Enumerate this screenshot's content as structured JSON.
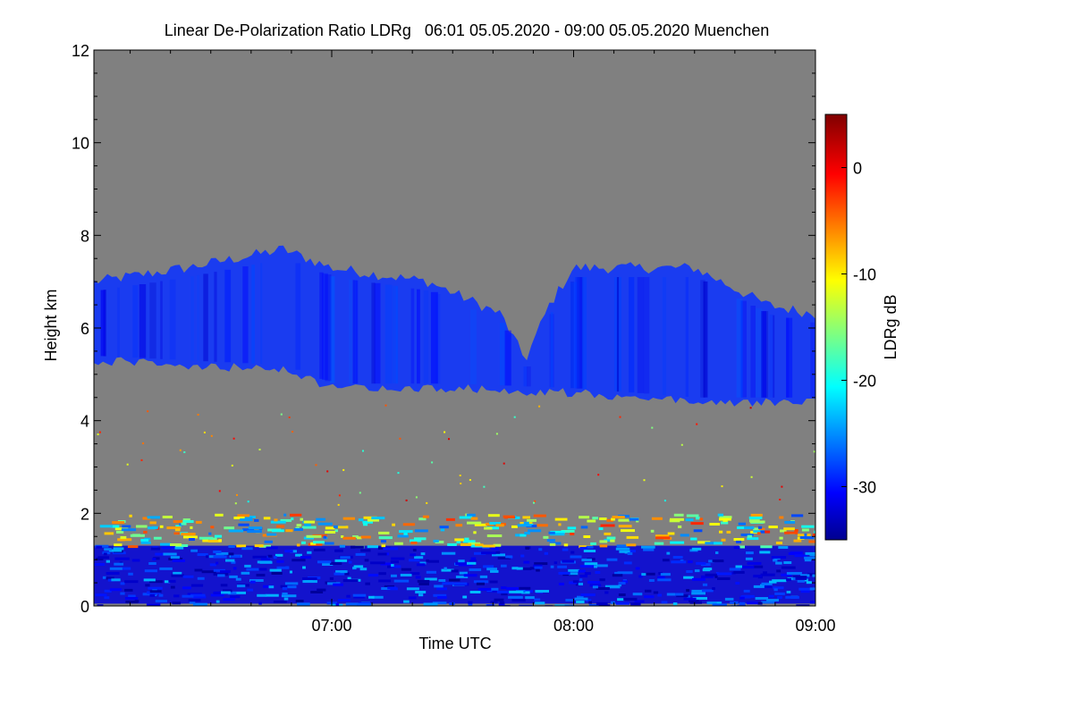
{
  "chart_data": {
    "type": "heatmap",
    "title": "Linear De-Polarization Ratio LDRg   06:01 05.05.2020 - 09:00 05.05.2020 Muenchen",
    "xlabel": "Time UTC",
    "ylabel": "Height km",
    "colorbar_label": "LDRg dB",
    "x_range": [
      "06:01",
      "09:00"
    ],
    "xlim": [
      6.0167,
      9.0
    ],
    "x_ticks": [
      {
        "label": "07:00",
        "value": 7.0
      },
      {
        "label": "08:00",
        "value": 8.0
      },
      {
        "label": "09:00",
        "value": 9.0
      }
    ],
    "ylim": [
      0,
      12
    ],
    "y_ticks": [
      {
        "label": "0",
        "value": 0
      },
      {
        "label": "2",
        "value": 2
      },
      {
        "label": "4",
        "value": 4
      },
      {
        "label": "6",
        "value": 6
      },
      {
        "label": "8",
        "value": 8
      },
      {
        "label": "10",
        "value": 10
      },
      {
        "label": "12",
        "value": 12
      }
    ],
    "colorbar_range": [
      -35,
      5
    ],
    "colorbar_ticks": [
      {
        "label": "0",
        "value": 0
      },
      {
        "label": "-10",
        "value": -10
      },
      {
        "label": "-20",
        "value": -20
      },
      {
        "label": "-30",
        "value": -30
      }
    ],
    "colormap": "jet",
    "background_color": "#808080",
    "colors": {
      "no_signal": "#808080",
      "cloud_core": "#1a3cf0",
      "low_extreme": "#0c0c96",
      "high_extreme": "#8b0000"
    },
    "features": {
      "cloud_layer": {
        "description_value_db": -30,
        "top_km": [
          [
            6.02,
            7.0
          ],
          [
            6.4,
            7.3
          ],
          [
            6.8,
            7.7
          ],
          [
            7.0,
            7.3
          ],
          [
            7.4,
            7.0
          ],
          [
            7.7,
            6.3
          ],
          [
            7.8,
            5.3
          ],
          [
            7.9,
            6.5
          ],
          [
            8.0,
            7.3
          ],
          [
            8.5,
            7.3
          ],
          [
            8.8,
            6.5
          ],
          [
            9.0,
            6.3
          ]
        ],
        "base_km": [
          [
            6.02,
            5.4
          ],
          [
            6.4,
            5.3
          ],
          [
            6.8,
            5.2
          ],
          [
            7.0,
            4.8
          ],
          [
            7.5,
            4.8
          ],
          [
            8.0,
            4.7
          ],
          [
            8.5,
            4.5
          ],
          [
            9.0,
            4.5
          ]
        ]
      },
      "boundary_layer": {
        "top_km": 2.0,
        "dominant_value_db": -32
      }
    }
  }
}
